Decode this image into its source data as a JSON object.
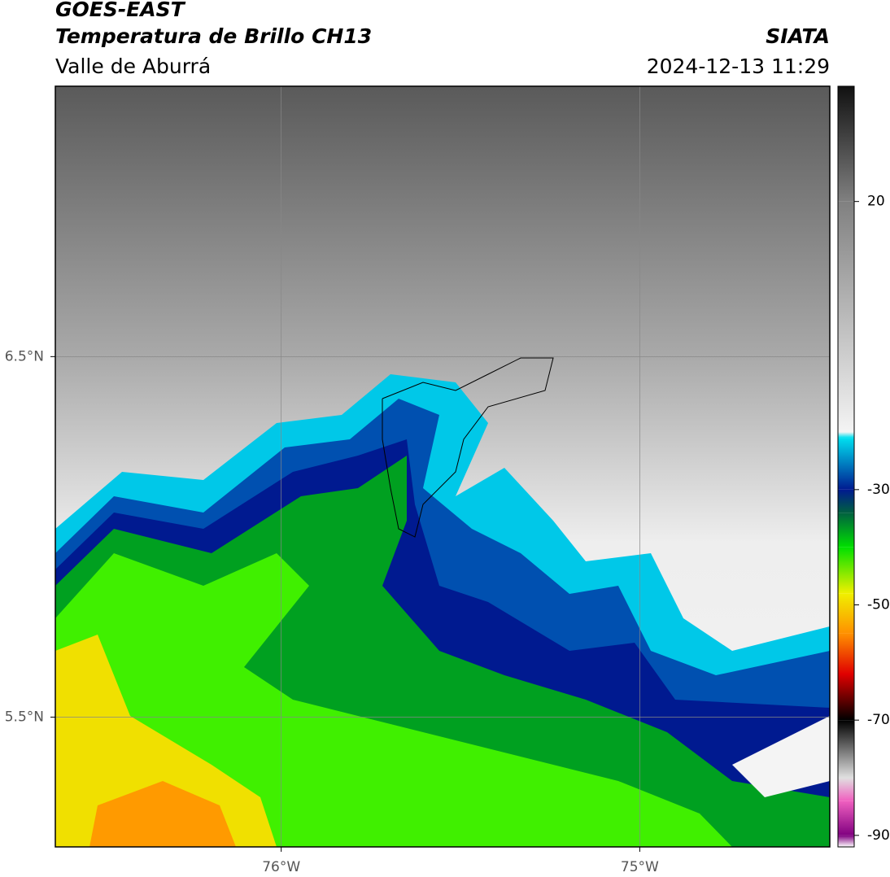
{
  "header": {
    "satellite": "GOES-EAST",
    "product": "Temperatura de Brillo CH13",
    "region": "Valle de Aburrá",
    "agency": "SIATA",
    "datetime": "2024-12-13 11:29"
  },
  "map": {
    "xlim": [
      -76.63,
      -74.47
    ],
    "ylim": [
      5.14,
      7.25
    ],
    "xticks": [
      {
        "value": -76,
        "label": "76°W"
      },
      {
        "value": -75,
        "label": "75°W"
      }
    ],
    "yticks": [
      {
        "value": 6.5,
        "label": "6.5°N"
      },
      {
        "value": 5.5,
        "label": "5.5°N"
      }
    ],
    "grid": true
  },
  "colorbar": {
    "lim": [
      -92,
      40
    ],
    "ticks": [
      20,
      -30,
      -50,
      -70,
      -90
    ],
    "colormap": [
      {
        "value": 40,
        "color": "#111111"
      },
      {
        "value": 20,
        "color": "#808080"
      },
      {
        "value": -20,
        "color": "#f4f4f4"
      },
      {
        "value": -21,
        "color": "#00e0f0"
      },
      {
        "value": -30,
        "color": "#001a90"
      },
      {
        "value": -34,
        "color": "#006040"
      },
      {
        "value": -40,
        "color": "#00e000"
      },
      {
        "value": -48,
        "color": "#f0f000"
      },
      {
        "value": -55,
        "color": "#ff9000"
      },
      {
        "value": -62,
        "color": "#e00000"
      },
      {
        "value": -70,
        "color": "#000000"
      },
      {
        "value": -80,
        "color": "#e0e0e0"
      },
      {
        "value": -84,
        "color": "#f060c0"
      },
      {
        "value": -90,
        "color": "#800080"
      },
      {
        "value": -92,
        "color": "#ffffff"
      }
    ]
  }
}
